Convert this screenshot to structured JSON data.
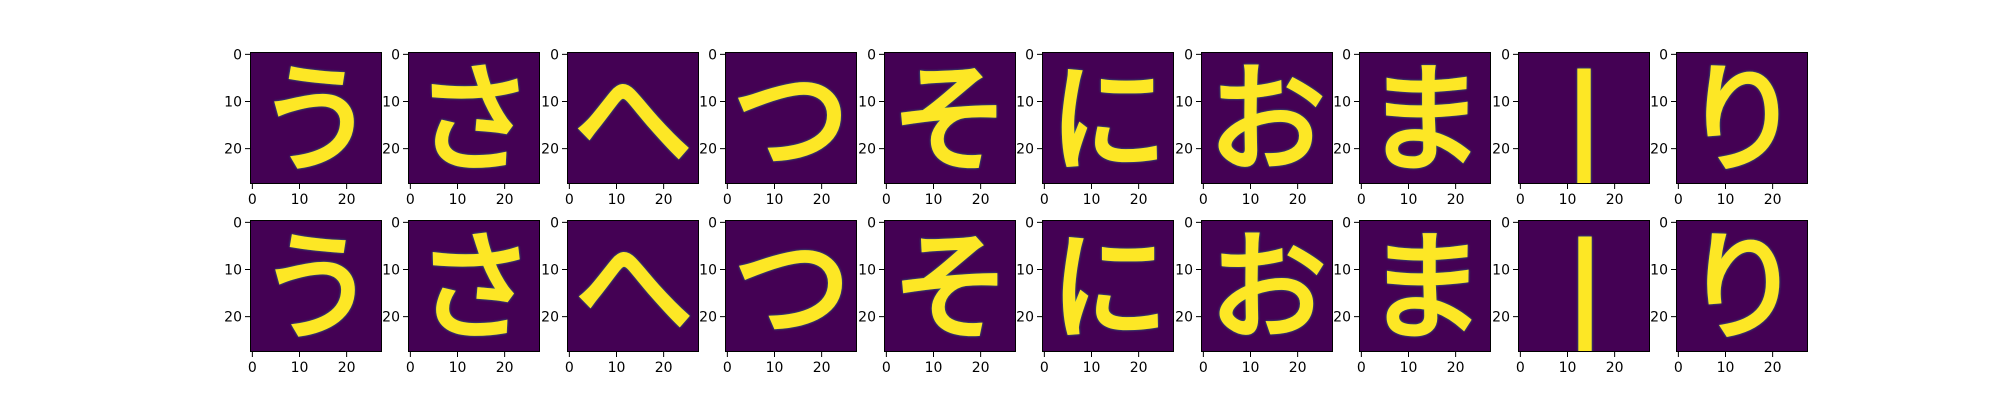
{
  "chart_data": {
    "type": "heatmap",
    "layout": "image grid, 2 rows x 10 columns",
    "colormap": "viridis",
    "colormap_stops": [
      "#440154",
      "#3b528b",
      "#21918c",
      "#5ec962",
      "#fde725"
    ],
    "image_size": [
      28,
      28
    ],
    "xlim": [
      0,
      27
    ],
    "ylim": [
      27,
      0
    ],
    "x_ticks": [
      0,
      10,
      20
    ],
    "y_ticks": [
      0,
      10,
      20
    ],
    "grid": false,
    "rows": [
      {
        "row": "top",
        "panels": [
          {
            "glyph": "う"
          },
          {
            "glyph": "さ"
          },
          {
            "glyph": "へ"
          },
          {
            "glyph": "つ"
          },
          {
            "glyph": "そ"
          },
          {
            "glyph": "に"
          },
          {
            "glyph": "お"
          },
          {
            "glyph": "ま"
          },
          {
            "glyph": "|"
          },
          {
            "glyph": "り"
          }
        ]
      },
      {
        "row": "bottom",
        "panels": [
          {
            "glyph": "う"
          },
          {
            "glyph": "さ"
          },
          {
            "glyph": "へ"
          },
          {
            "glyph": "つ"
          },
          {
            "glyph": "そ"
          },
          {
            "glyph": "に"
          },
          {
            "glyph": "お"
          },
          {
            "glyph": "ま"
          },
          {
            "glyph": "|"
          },
          {
            "glyph": "り"
          }
        ]
      }
    ]
  }
}
